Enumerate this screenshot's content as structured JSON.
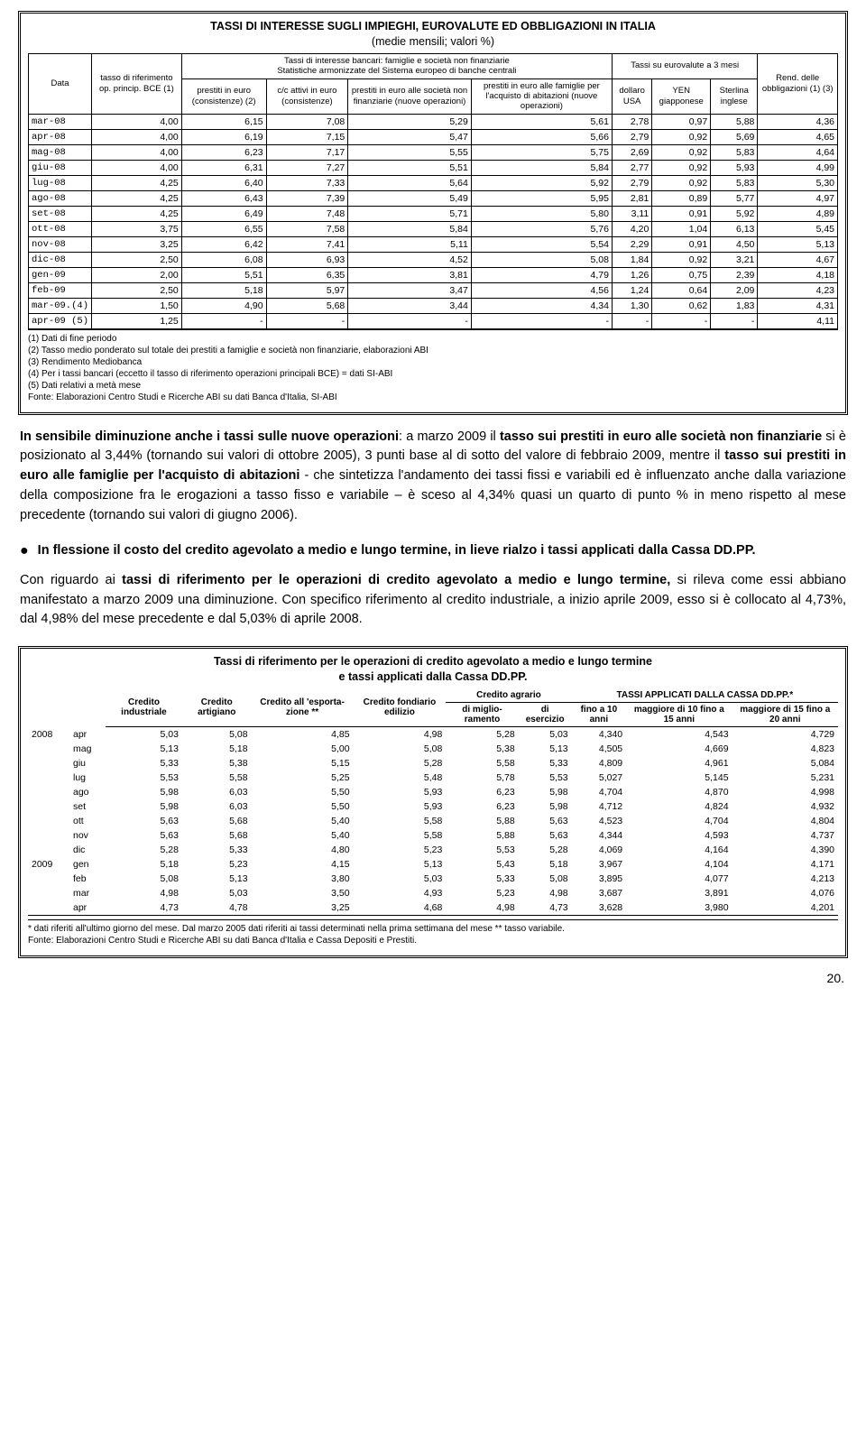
{
  "table1": {
    "title": "TASSI DI INTERESSE SUGLI IMPIEGHI, EUROVALUTE ED OBBLIGAZIONI IN ITALIA",
    "subtitle": "(medie mensili; valori %)",
    "group_bank": "Tassi di interesse bancari: famiglie e società non finanziarie",
    "group_bank_sub": "Statistiche armonizzate del Sistema europeo di banche centrali",
    "group_eur": "Tassi su eurovalute a 3 mesi",
    "col_data": "Data",
    "col_bce": "tasso di riferimento op. princip. BCE (1)",
    "col_prestiti": "prestiti in euro (consistenze) (2)",
    "col_cc": "c/c attivi in euro (consistenze)",
    "col_soc": "prestiti in euro alle società non finanziarie (nuove operazioni)",
    "col_fam": "prestiti in euro alle famiglie per l'acquisto di abitazioni (nuove operazioni)",
    "col_usd": "dollaro USA",
    "col_yen": "YEN giapponese",
    "col_gbp": "Sterlina inglese",
    "col_rend": "Rend. delle obbligazioni (1) (3)",
    "rows": [
      {
        "d": "mar-08",
        "v": [
          "4,00",
          "6,15",
          "7,08",
          "5,29",
          "5,61",
          "2,78",
          "0,97",
          "5,88",
          "4,36"
        ]
      },
      {
        "d": "apr-08",
        "v": [
          "4,00",
          "6,19",
          "7,15",
          "5,47",
          "5,66",
          "2,79",
          "0,92",
          "5,69",
          "4,65"
        ]
      },
      {
        "d": "mag-08",
        "v": [
          "4,00",
          "6,23",
          "7,17",
          "5,55",
          "5,75",
          "2,69",
          "0,92",
          "5,83",
          "4,64"
        ]
      },
      {
        "d": "giu-08",
        "v": [
          "4,00",
          "6,31",
          "7,27",
          "5,51",
          "5,84",
          "2,77",
          "0,92",
          "5,93",
          "4,99"
        ]
      },
      {
        "d": "lug-08",
        "v": [
          "4,25",
          "6,40",
          "7,33",
          "5,64",
          "5,92",
          "2,79",
          "0,92",
          "5,83",
          "5,30"
        ]
      },
      {
        "d": "ago-08",
        "v": [
          "4,25",
          "6,43",
          "7,39",
          "5,49",
          "5,95",
          "2,81",
          "0,89",
          "5,77",
          "4,97"
        ]
      },
      {
        "d": "set-08",
        "v": [
          "4,25",
          "6,49",
          "7,48",
          "5,71",
          "5,80",
          "3,11",
          "0,91",
          "5,92",
          "4,89"
        ]
      },
      {
        "d": "ott-08",
        "v": [
          "3,75",
          "6,55",
          "7,58",
          "5,84",
          "5,76",
          "4,20",
          "1,04",
          "6,13",
          "5,45"
        ]
      },
      {
        "d": "nov-08",
        "v": [
          "3,25",
          "6,42",
          "7,41",
          "5,11",
          "5,54",
          "2,29",
          "0,91",
          "4,50",
          "5,13"
        ]
      },
      {
        "d": "dic-08",
        "v": [
          "2,50",
          "6,08",
          "6,93",
          "4,52",
          "5,08",
          "1,84",
          "0,92",
          "3,21",
          "4,67"
        ]
      },
      {
        "d": "gen-09",
        "v": [
          "2,00",
          "5,51",
          "6,35",
          "3,81",
          "4,79",
          "1,26",
          "0,75",
          "2,39",
          "4,18"
        ]
      },
      {
        "d": "feb-09",
        "v": [
          "2,50",
          "5,18",
          "5,97",
          "3,47",
          "4,56",
          "1,24",
          "0,64",
          "2,09",
          "4,23"
        ]
      },
      {
        "d": "mar-09.(4)",
        "v": [
          "1,50",
          "4,90",
          "5,68",
          "3,44",
          "4,34",
          "1,30",
          "0,62",
          "1,83",
          "4,31"
        ]
      },
      {
        "d": "apr-09 (5)",
        "v": [
          "1,25",
          "-",
          "-",
          "-",
          "-",
          "-",
          "-",
          "-",
          "4,11"
        ]
      }
    ],
    "notes": [
      "(1) Dati di fine periodo",
      "(2) Tasso medio ponderato sul totale dei prestiti a famiglie e società non finanziarie, elaborazioni ABI",
      "(3) Rendimento Mediobanca",
      "(4) Per i tassi bancari (eccetto il tasso di riferimento operazioni principali BCE) = dati SI-ABI",
      "(5) Dati relativi a metà mese",
      "Fonte: Elaborazioni Centro Studi e Ricerche ABI su dati Banca d'Italia, SI-ABI"
    ]
  },
  "para1": {
    "runs": [
      {
        "t": "In sensibile diminuzione anche i tassi sulle nuove operazioni",
        "b": true
      },
      {
        "t": ": a marzo 2009 il ",
        "b": false
      },
      {
        "t": "tasso sui prestiti in euro alle società non finanziarie",
        "b": true
      },
      {
        "t": " si è posizionato al 3,44% (tornando sui valori di ottobre 2005), 3 punti base al di sotto del valore di febbraio 2009, mentre il ",
        "b": false
      },
      {
        "t": "tasso sui prestiti in euro alle famiglie per l'acquisto di abitazioni",
        "b": true
      },
      {
        "t": " - che sintetizza l'andamento dei tassi fissi e variabili ed è influenzato anche dalla variazione della composizione fra le erogazioni a tasso fisso e variabile – è sceso al 4,34% quasi un quarto di punto % in meno rispetto al mese precedente (tornando sui valori di giugno 2006).",
        "b": false
      }
    ]
  },
  "bullet": "In flessione il costo del credito agevolato a medio e lungo termine, in lieve rialzo i tassi applicati dalla Cassa DD.PP.",
  "para2": {
    "runs": [
      {
        "t": "Con riguardo ai ",
        "b": false
      },
      {
        "t": "tassi di riferimento per le operazioni di credito agevolato a medio e lungo termine,",
        "b": true
      },
      {
        "t": " si rileva come essi abbiano manifestato a  marzo 2009 una diminuzione.  Con specifico riferimento al credito industriale, a inizio aprile 2009, esso si è collocato al 4,73%, dal 4,98% del mese precedente e dal 5,03% di aprile 2008.",
        "b": false
      }
    ]
  },
  "table2": {
    "title": "Tassi di riferimento per le operazioni di credito agevolato a medio e lungo termine",
    "subtitle": "e tassi applicati dalla Cassa DD.PP.",
    "h_ind": "Credito industriale",
    "h_art": "Credito artigiano",
    "h_esp": "Credito all 'esporta- zione **",
    "h_fon": "Credito fondiario edilizio",
    "h_agr": "Credito agrario",
    "h_agr1": "di miglio- ramento",
    "h_agr2": "di esercizio",
    "h_cassa": "TASSI APPLICATI DALLA CASSA DD.PP.*",
    "h_c1": "fino a 10 anni",
    "h_c2": "maggiore di 10 fino a 15 anni",
    "h_c3": "maggiore di 15 fino a 20 anni",
    "rows": [
      {
        "y": "2008",
        "m": "apr",
        "v": [
          "5,03",
          "5,08",
          "4,85",
          "4,98",
          "5,28",
          "5,03",
          "4,340",
          "4,543",
          "4,729"
        ]
      },
      {
        "y": "",
        "m": "mag",
        "v": [
          "5,13",
          "5,18",
          "5,00",
          "5,08",
          "5,38",
          "5,13",
          "4,505",
          "4,669",
          "4,823"
        ]
      },
      {
        "y": "",
        "m": "giu",
        "v": [
          "5,33",
          "5,38",
          "5,15",
          "5,28",
          "5,58",
          "5,33",
          "4,809",
          "4,961",
          "5,084"
        ]
      },
      {
        "y": "",
        "m": "lug",
        "v": [
          "5,53",
          "5,58",
          "5,25",
          "5,48",
          "5,78",
          "5,53",
          "5,027",
          "5,145",
          "5,231"
        ]
      },
      {
        "y": "",
        "m": "ago",
        "v": [
          "5,98",
          "6,03",
          "5,50",
          "5,93",
          "6,23",
          "5,98",
          "4,704",
          "4,870",
          "4,998"
        ]
      },
      {
        "y": "",
        "m": "set",
        "v": [
          "5,98",
          "6,03",
          "5,50",
          "5,93",
          "6,23",
          "5,98",
          "4,712",
          "4,824",
          "4,932"
        ]
      },
      {
        "y": "",
        "m": "ott",
        "v": [
          "5,63",
          "5,68",
          "5,40",
          "5,58",
          "5,88",
          "5,63",
          "4,523",
          "4,704",
          "4,804"
        ]
      },
      {
        "y": "",
        "m": "nov",
        "v": [
          "5,63",
          "5,68",
          "5,40",
          "5,58",
          "5,88",
          "5,63",
          "4,344",
          "4,593",
          "4,737"
        ]
      },
      {
        "y": "",
        "m": "dic",
        "v": [
          "5,28",
          "5,33",
          "4,80",
          "5,23",
          "5,53",
          "5,28",
          "4,069",
          "4,164",
          "4,390"
        ]
      },
      {
        "y": "2009",
        "m": "gen",
        "v": [
          "5,18",
          "5,23",
          "4,15",
          "5,13",
          "5,43",
          "5,18",
          "3,967",
          "4,104",
          "4,171"
        ]
      },
      {
        "y": "",
        "m": "feb",
        "v": [
          "5,08",
          "5,13",
          "3,80",
          "5,03",
          "5,33",
          "5,08",
          "3,895",
          "4,077",
          "4,213"
        ]
      },
      {
        "y": "",
        "m": "mar",
        "v": [
          "4,98",
          "5,03",
          "3,50",
          "4,93",
          "5,23",
          "4,98",
          "3,687",
          "3,891",
          "4,076"
        ]
      },
      {
        "y": "",
        "m": "apr",
        "v": [
          "4,73",
          "4,78",
          "3,25",
          "4,68",
          "4,98",
          "4,73",
          "3,628",
          "3,980",
          "4,201"
        ]
      }
    ],
    "notes": [
      "* dati riferiti all'ultimo giorno del mese. Dal marzo 2005 dati riferiti ai tassi determinati nella prima settimana del mese  ** tasso variabile.",
      "Fonte: Elaborazioni Centro Studi e Ricerche ABI su dati Banca d'Italia e Cassa Depositi e Prestiti."
    ]
  },
  "pagenum": "20."
}
